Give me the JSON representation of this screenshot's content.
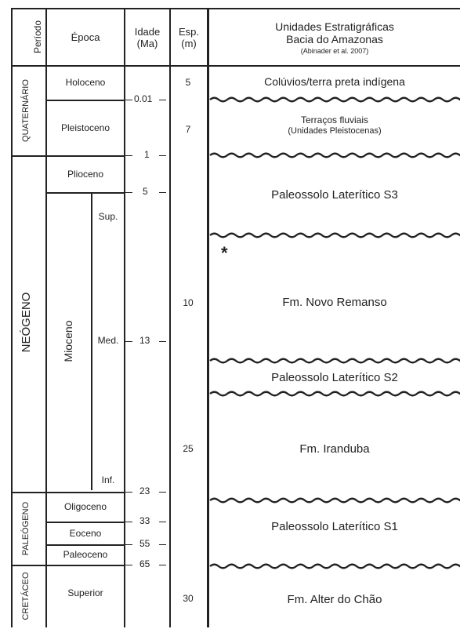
{
  "header": {
    "period": "Período",
    "epoch": "Época",
    "age_line1": "Idade",
    "age_line2": "(Ma)",
    "esp_line1": "Esp.",
    "esp_line2": "(m)",
    "units_line1": "Unidades Estratigráficas",
    "units_line2": "Bacia do Amazonas",
    "units_ref": "(Abinader et al. 2007)"
  },
  "periods": {
    "quaternario": "QUATERNÁRIO",
    "neogeno": "NEÓGENO",
    "paleogeno": "PALEÓGENO",
    "cretaceo": "CRETÁCEO"
  },
  "epochs": {
    "holoceno": "Holoceno",
    "pleistoceno": "Pleistoceno",
    "plioceno": "Plioceno",
    "mioceno": "Mioceno",
    "sup": "Sup.",
    "med": "Med.",
    "inf": "Inf.",
    "oligoceno": "Oligoceno",
    "eoceno": "Eoceno",
    "paleoceno": "Paleoceno",
    "superior": "Superior"
  },
  "ages": {
    "a001": "0.01",
    "a1": "1",
    "a5": "5",
    "a13": "13",
    "a23": "23",
    "a33": "33",
    "a55": "55",
    "a65": "65"
  },
  "thickness": {
    "e5": "5",
    "e7": "7",
    "e10": "10",
    "e25": "25",
    "e30": "30"
  },
  "units": {
    "coluvios": "Colúvios/terra preta indígena",
    "terracos_1": "Terraços fluviais",
    "terracos_2": "(Unidades Pleistocenas)",
    "s3": "Paleossolo Laterítico  S3",
    "marker": "*",
    "novo_remanso": "Fm. Novo Remanso",
    "s2": "Paleossolo Laterítico S2",
    "iranduba": "Fm. Iranduba",
    "s1": "Paleossolo Laterítico S1",
    "alter_do_chao": "Fm. Alter do Chão"
  }
}
